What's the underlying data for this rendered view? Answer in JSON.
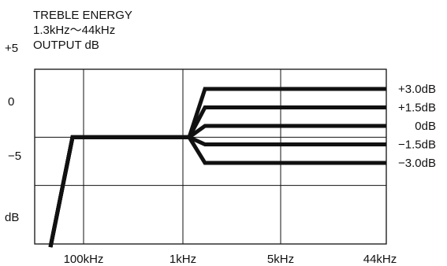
{
  "chart_data": {
    "type": "line",
    "title_lines": [
      "TREBLE ENERGY",
      "1.3kHz～44kHz",
      "OUTPUT dB"
    ],
    "ylabel": "dB",
    "y_ticks": [
      {
        "value": 5,
        "label": "+5"
      },
      {
        "value": 0,
        "label": "0"
      },
      {
        "value": -5,
        "label": "−5"
      }
    ],
    "x_ticks": [
      "100kHz",
      "1kHz",
      "5kHz",
      "44kHz"
    ],
    "x_scale": "categorical",
    "ylim": [
      -12.5,
      3
    ],
    "grid": true,
    "series": [
      {
        "name": "+3.0dB",
        "end_value": 3.0
      },
      {
        "name": "+1.5dB",
        "end_value": 1.5
      },
      {
        "name": "0dB",
        "end_value": 0
      },
      {
        "name": "−1.5dB",
        "end_value": -1.5
      },
      {
        "name": "−3.0dB",
        "end_value": -3.0
      }
    ],
    "shared_curve": {
      "rise_start_x_tick": 0,
      "rise_start_db": -12.5,
      "plateau_start_x_tick": 0,
      "plateau_db": -2,
      "branch_x_tick": 1
    },
    "line_color": "#111111"
  }
}
